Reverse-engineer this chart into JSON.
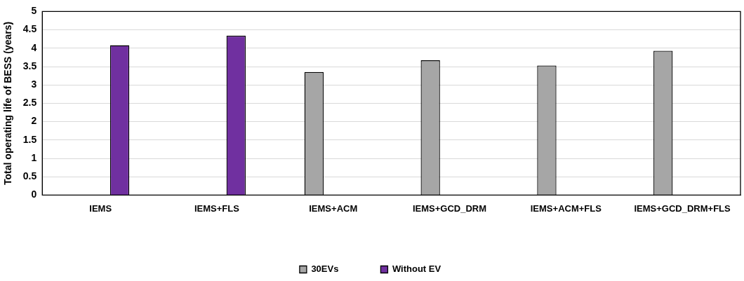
{
  "chart_data": {
    "type": "bar",
    "ylabel": "Total operating life of BESS (years)",
    "categories": [
      "IEMS",
      "IEMS+FLS",
      "IEMS+ACM",
      "IEMS+GCD_DRM",
      "IEMS+ACM+FLS",
      "IEMS+GCD_DRM+FLS"
    ],
    "series": [
      {
        "name": "30EVs",
        "color": "#a6a6a6",
        "values": [
          null,
          null,
          3.35,
          3.67,
          3.53,
          3.93
        ]
      },
      {
        "name": "Without EV",
        "color": "#7030a0",
        "values": [
          4.08,
          4.34,
          null,
          null,
          null,
          null
        ]
      }
    ],
    "ylim": [
      0,
      5
    ],
    "yticks": [
      0,
      0.5,
      1,
      1.5,
      2,
      2.5,
      3,
      3.5,
      4,
      4.5,
      5
    ],
    "grid": "y",
    "legend": "bottom"
  }
}
